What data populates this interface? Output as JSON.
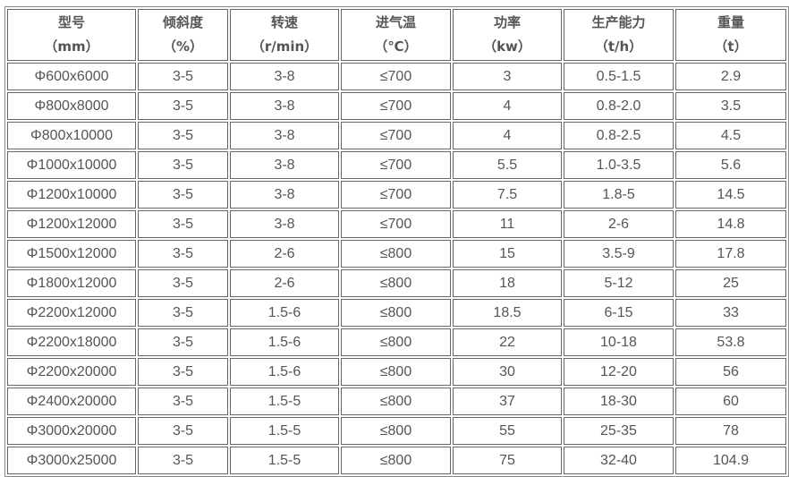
{
  "table": {
    "headers": [
      {
        "name": "型号",
        "unit": "（mm）"
      },
      {
        "name": "倾斜度",
        "unit": "（%）"
      },
      {
        "name": "转速",
        "unit": "（r/min）"
      },
      {
        "name": "进气温",
        "unit": "（℃）"
      },
      {
        "name": "功率",
        "unit": "（kw）"
      },
      {
        "name": "生产能力",
        "unit": "（t/h）"
      },
      {
        "name": "重量",
        "unit": "（t）"
      }
    ],
    "rows": [
      [
        "Φ600x6000",
        "3-5",
        "3-8",
        "≤700",
        "3",
        "0.5-1.5",
        "2.9"
      ],
      [
        "Φ800x8000",
        "3-5",
        "3-8",
        "≤700",
        "4",
        "0.8-2.0",
        "3.5"
      ],
      [
        "Φ800x10000",
        "3-5",
        "3-8",
        "≤700",
        "4",
        "0.8-2.5",
        "4.5"
      ],
      [
        "Φ1000x10000",
        "3-5",
        "3-8",
        "≤700",
        "5.5",
        "1.0-3.5",
        "5.6"
      ],
      [
        "Φ1200x10000",
        "3-5",
        "3-8",
        "≤700",
        "7.5",
        "1.8-5",
        "14.5"
      ],
      [
        "Φ1200x12000",
        "3-5",
        "3-8",
        "≤700",
        "11",
        "2-6",
        "14.8"
      ],
      [
        "Φ1500x12000",
        "3-5",
        "2-6",
        "≤800",
        "15",
        "3.5-9",
        "17.8"
      ],
      [
        "Φ1800x12000",
        "3-5",
        "2-6",
        "≤800",
        "18",
        "5-12",
        "25"
      ],
      [
        "Φ2200x12000",
        "3-5",
        "1.5-6",
        "≤800",
        "18.5",
        "6-15",
        "33"
      ],
      [
        "Φ2200x18000",
        "3-5",
        "1.5-6",
        "≤800",
        "22",
        "10-18",
        "53.8"
      ],
      [
        "Φ2200x20000",
        "3-5",
        "1.5-6",
        "≤800",
        "30",
        "12-20",
        "56"
      ],
      [
        "Φ2400x20000",
        "3-5",
        "1.5-5",
        "≤800",
        "37",
        "18-30",
        "60"
      ],
      [
        "Φ3000x20000",
        "3-5",
        "1.5-5",
        "≤800",
        "55",
        "25-35",
        "78"
      ],
      [
        "Φ3000x25000",
        "3-5",
        "1.5-5",
        "≤800",
        "75",
        "32-40",
        "104.9"
      ]
    ]
  }
}
